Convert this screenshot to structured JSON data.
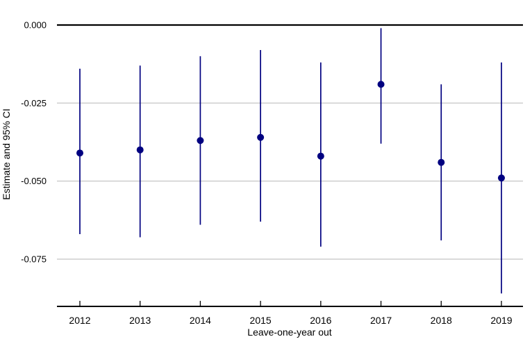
{
  "chart_data": {
    "type": "scatter",
    "title": "",
    "xlabel": "Leave-one-year out",
    "ylabel": "Estimate and 95% CI",
    "categories": [
      "2012",
      "2013",
      "2014",
      "2015",
      "2016",
      "2017",
      "2018",
      "2019"
    ],
    "series": [
      {
        "name": "estimate",
        "values": [
          -0.041,
          -0.04,
          -0.037,
          -0.036,
          -0.042,
          -0.019,
          -0.044,
          -0.049
        ]
      },
      {
        "name": "ci_lower",
        "values": [
          -0.067,
          -0.068,
          -0.064,
          -0.063,
          -0.071,
          -0.038,
          -0.069,
          -0.086
        ]
      },
      {
        "name": "ci_upper",
        "values": [
          -0.014,
          -0.013,
          -0.01,
          -0.008,
          -0.012,
          -0.001,
          -0.019,
          -0.012
        ]
      }
    ],
    "y_ticks": [
      {
        "value": 0,
        "label": "0.000"
      },
      {
        "value": -0.025,
        "label": "-0.025"
      },
      {
        "value": -0.05,
        "label": "-0.050"
      },
      {
        "value": -0.075,
        "label": "-0.075"
      }
    ],
    "ylim": [
      -0.09,
      0
    ],
    "grid": true,
    "legend": "none",
    "colors": {
      "point": "#000080",
      "ci_line": "#000080",
      "zero_line": "#000000",
      "gridline": "#cdcdcd",
      "axis_line": "#000000",
      "text": "#000000",
      "background": "#ffffff"
    }
  }
}
